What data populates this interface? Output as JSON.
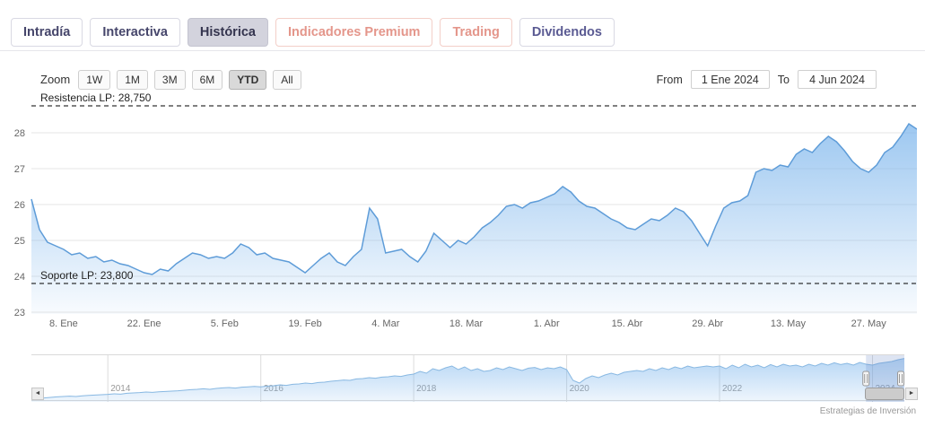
{
  "tabs": [
    {
      "label": "Intradía",
      "style": "default"
    },
    {
      "label": "Interactiva",
      "style": "default"
    },
    {
      "label": "Histórica",
      "style": "active"
    },
    {
      "label": "Indicadores Premium",
      "style": "premium"
    },
    {
      "label": "Trading",
      "style": "premium"
    },
    {
      "label": "Dividendos",
      "style": "accent"
    }
  ],
  "range_selector": {
    "zoom_label": "Zoom",
    "buttons": [
      "1W",
      "1M",
      "3M",
      "6M",
      "YTD",
      "All"
    ],
    "active_button": "YTD",
    "from_label": "From",
    "from_value": "1 Ene 2024",
    "to_label": "To",
    "to_value": "4 Jun 2024"
  },
  "annotations": {
    "resistance_label": "Resistencia LP: 28,750",
    "resistance_value": 28.75,
    "support_label": "Soporte LP: 23,800",
    "support_value": 23.8
  },
  "credits": "Estrategias de Inversión",
  "colors": {
    "series_line": "#5e9cd8",
    "series_fill_top": "rgba(124,181,236,0.75)",
    "series_fill_bottom": "rgba(124,181,236,0.05)",
    "gridline": "#e6e6e6",
    "axis_text": "#666666",
    "annotation_line": "#000000",
    "premium_accent": "#e4968b",
    "tab_text": "#46466b"
  },
  "chart_data": {
    "type": "area",
    "title": "",
    "ylabel": "",
    "xlabel": "",
    "ylim": [
      22.95,
      29.2
    ],
    "yticks": [
      23,
      24,
      25,
      26,
      27,
      28
    ],
    "xtick_labels": [
      "8. Ene",
      "22. Ene",
      "5. Feb",
      "19. Feb",
      "4. Mar",
      "18. Mar",
      "1. Abr",
      "15. Abr",
      "29. Abr",
      "13. May",
      "27. May"
    ],
    "xtick_indices": [
      4,
      14,
      24,
      34,
      44,
      54,
      64,
      74,
      84,
      94,
      104
    ],
    "values": [
      26.15,
      25.3,
      24.95,
      24.85,
      24.75,
      24.6,
      24.65,
      24.5,
      24.55,
      24.4,
      24.45,
      24.35,
      24.3,
      24.2,
      24.1,
      24.05,
      24.2,
      24.15,
      24.35,
      24.5,
      24.65,
      24.6,
      24.5,
      24.55,
      24.5,
      24.65,
      24.9,
      24.8,
      24.6,
      24.65,
      24.5,
      24.45,
      24.4,
      24.25,
      24.1,
      24.3,
      24.5,
      24.65,
      24.4,
      24.3,
      24.55,
      24.75,
      25.9,
      25.6,
      24.65,
      24.7,
      24.75,
      24.55,
      24.4,
      24.7,
      25.2,
      25.0,
      24.8,
      25.0,
      24.9,
      25.1,
      25.35,
      25.5,
      25.7,
      25.95,
      26.0,
      25.9,
      26.05,
      26.1,
      26.2,
      26.3,
      26.5,
      26.35,
      26.1,
      25.95,
      25.9,
      25.75,
      25.6,
      25.5,
      25.35,
      25.3,
      25.45,
      25.6,
      25.55,
      25.7,
      25.9,
      25.8,
      25.55,
      25.2,
      24.85,
      25.4,
      25.9,
      26.05,
      26.1,
      26.25,
      26.9,
      27.0,
      26.95,
      27.1,
      27.05,
      27.4,
      27.55,
      27.45,
      27.7,
      27.9,
      27.75,
      27.5,
      27.2,
      27.0,
      26.9,
      27.1,
      27.45,
      27.6,
      27.9,
      28.25,
      28.1
    ],
    "navigator": {
      "values": [
        5.5,
        6,
        6.2,
        6.5,
        6.8,
        7,
        7.2,
        7,
        7.4,
        7.6,
        7.8,
        8,
        8.2,
        8.5,
        8.3,
        8.8,
        9,
        9.2,
        9.5,
        9.3,
        9.6,
        9.8,
        10,
        10.2,
        10.5,
        10.8,
        11,
        11.3,
        11,
        11.5,
        11.8,
        12,
        11.7,
        12.2,
        12.4,
        12.6,
        12.4,
        12.8,
        13,
        13.5,
        13.2,
        13.8,
        14,
        14.5,
        14.2,
        14.8,
        15,
        15.5,
        15.8,
        16.2,
        16,
        16.8,
        17,
        17.5,
        17.2,
        17.8,
        18,
        18.5,
        18.2,
        19,
        19.5,
        21,
        20,
        22.5,
        21.5,
        23,
        24,
        22,
        23.5,
        21.5,
        22.5,
        21,
        21.5,
        23,
        22,
        23.5,
        22.5,
        21.5,
        22.8,
        23.2,
        22,
        23,
        22.5,
        23.5,
        22,
        16,
        14.5,
        17,
        18.5,
        17.5,
        19,
        20,
        19,
        20.5,
        21,
        21.5,
        21,
        22.5,
        21.5,
        23,
        22,
        23.5,
        22.5,
        24,
        23,
        23.5,
        24,
        23.5,
        24,
        22.5,
        24.5,
        23,
        25,
        23.5,
        24.5,
        23,
        24.8,
        23.5,
        25,
        24,
        24.5,
        23.5,
        25,
        24,
        25.5,
        24.5,
        25.8,
        24.8,
        25.5,
        24.5,
        26,
        25,
        24.5,
        25.5,
        26,
        26.5,
        27.5,
        28.2
      ],
      "year_labels": [
        "2014",
        "2016",
        "2018",
        "2020",
        "2022",
        "2024"
      ],
      "year_indices": [
        12,
        36,
        60,
        84,
        108,
        132
      ],
      "selection_start_frac": 0.956,
      "selection_end_frac": 1.0
    }
  }
}
